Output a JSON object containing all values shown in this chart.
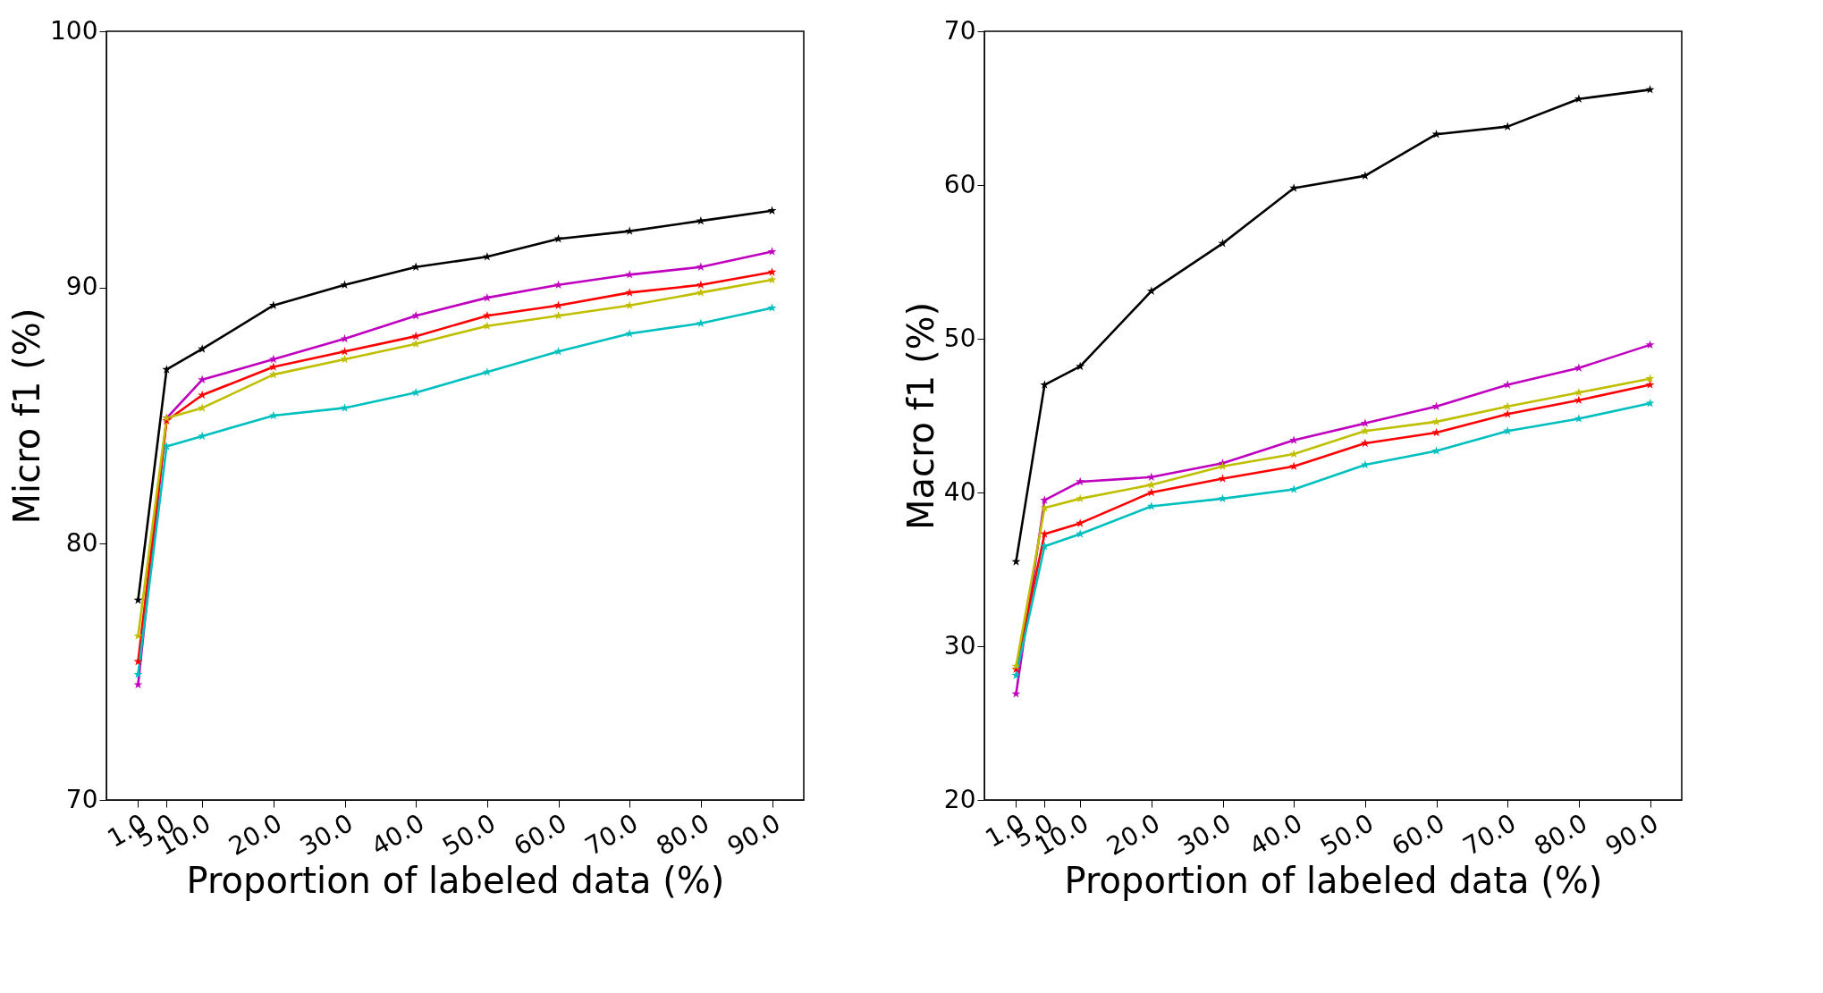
{
  "chart_data": [
    {
      "type": "line",
      "xlabel": "Proportion of labeled data (%)",
      "ylabel": "Micro f1 (%)",
      "x": [
        1,
        5,
        10,
        20,
        30,
        40,
        50,
        60,
        70,
        80,
        90
      ],
      "xlim": [
        -3.45,
        94.45
      ],
      "xticks": [
        {
          "value": 1,
          "label": "1.0"
        },
        {
          "value": 5,
          "label": "5.0"
        },
        {
          "value": 10,
          "label": "10.0"
        },
        {
          "value": 20,
          "label": "20.0"
        },
        {
          "value": 30,
          "label": "30.0"
        },
        {
          "value": 40,
          "label": "40.0"
        },
        {
          "value": 50,
          "label": "50.0"
        },
        {
          "value": 60,
          "label": "60.0"
        },
        {
          "value": 70,
          "label": "70.0"
        },
        {
          "value": 80,
          "label": "80.0"
        },
        {
          "value": 90,
          "label": "90.0"
        }
      ],
      "ylim": [
        70,
        100
      ],
      "yticks": [
        70,
        80,
        90,
        100
      ],
      "grid": false,
      "legend": false,
      "marker": "star",
      "line_style": "solid",
      "series": [
        {
          "color": "#000000",
          "values": [
            77.8,
            86.8,
            87.6,
            89.3,
            90.1,
            90.8,
            91.2,
            91.9,
            92.2,
            92.6,
            93.0
          ]
        },
        {
          "color": "#bf00bf",
          "values": [
            74.5,
            84.9,
            86.4,
            87.2,
            88.0,
            88.9,
            89.6,
            90.1,
            90.5,
            90.8,
            91.4
          ]
        },
        {
          "color": "#ff0000",
          "values": [
            75.4,
            84.8,
            85.8,
            86.9,
            87.5,
            88.1,
            88.9,
            89.3,
            89.8,
            90.1,
            90.6
          ]
        },
        {
          "color": "#bfbf00",
          "values": [
            76.4,
            84.9,
            85.3,
            86.6,
            87.2,
            87.8,
            88.5,
            88.9,
            89.3,
            89.8,
            90.3
          ]
        },
        {
          "color": "#00bfbf",
          "values": [
            74.9,
            83.8,
            84.2,
            85.0,
            85.3,
            85.9,
            86.7,
            87.5,
            88.2,
            88.6,
            89.2
          ]
        }
      ]
    },
    {
      "type": "line",
      "xlabel": "Proportion of labeled data (%)",
      "ylabel": "Macro f1 (%)",
      "x": [
        1,
        5,
        10,
        20,
        30,
        40,
        50,
        60,
        70,
        80,
        90
      ],
      "xlim": [
        -3.45,
        94.45
      ],
      "xticks": [
        {
          "value": 1,
          "label": "1.0"
        },
        {
          "value": 5,
          "label": "5.0"
        },
        {
          "value": 10,
          "label": "10.0"
        },
        {
          "value": 20,
          "label": "20.0"
        },
        {
          "value": 30,
          "label": "30.0"
        },
        {
          "value": 40,
          "label": "40.0"
        },
        {
          "value": 50,
          "label": "50.0"
        },
        {
          "value": 60,
          "label": "60.0"
        },
        {
          "value": 70,
          "label": "70.0"
        },
        {
          "value": 80,
          "label": "80.0"
        },
        {
          "value": 90,
          "label": "90.0"
        }
      ],
      "ylim": [
        20,
        70
      ],
      "yticks": [
        20,
        30,
        40,
        50,
        60,
        70
      ],
      "grid": false,
      "legend": false,
      "marker": "star",
      "line_style": "solid",
      "series": [
        {
          "color": "#000000",
          "values": [
            35.5,
            47.0,
            48.2,
            53.1,
            56.2,
            59.8,
            60.6,
            63.3,
            63.8,
            65.6,
            66.2
          ]
        },
        {
          "color": "#bf00bf",
          "values": [
            26.9,
            39.5,
            40.7,
            41.0,
            41.9,
            43.4,
            44.5,
            45.6,
            47.0,
            48.1,
            49.6
          ]
        },
        {
          "color": "#ff0000",
          "values": [
            28.5,
            37.3,
            38.0,
            40.0,
            40.9,
            41.7,
            43.2,
            43.9,
            45.1,
            46.0,
            47.0
          ]
        },
        {
          "color": "#bfbf00",
          "values": [
            28.7,
            39.0,
            39.6,
            40.5,
            41.7,
            42.5,
            44.0,
            44.6,
            45.6,
            46.5,
            47.4
          ]
        },
        {
          "color": "#00bfbf",
          "values": [
            28.1,
            36.5,
            37.3,
            39.1,
            39.6,
            40.2,
            41.8,
            42.7,
            44.0,
            44.8,
            45.8
          ]
        }
      ]
    }
  ]
}
